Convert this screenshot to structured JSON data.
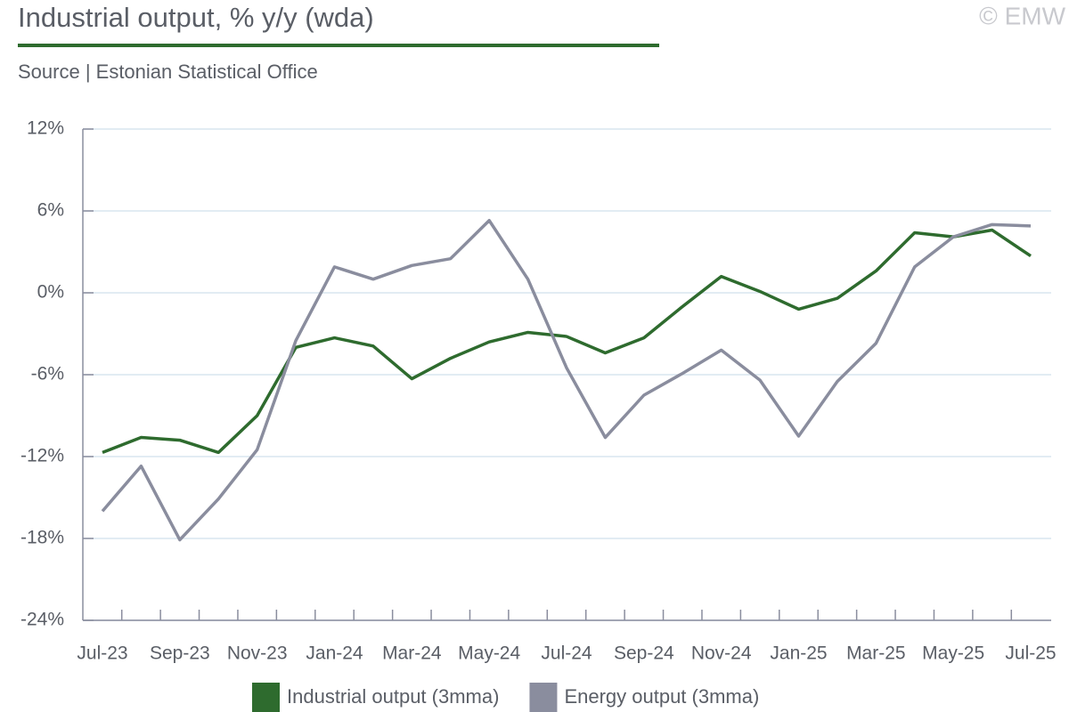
{
  "chart_data": {
    "type": "line",
    "title": "Industrial output, % y/y (wda)",
    "subtitle": "Source | Estonian Statistical Office",
    "copyright": "© EMW",
    "categories": [
      "Jul-23",
      null,
      "Sep-23",
      null,
      "Nov-23",
      null,
      "Jan-24",
      null,
      "Mar-24",
      null,
      "May-24",
      null,
      "Jul-24",
      null,
      "Sep-24",
      null,
      "Nov-24",
      null,
      "Jan-25",
      null,
      "Mar-25",
      null,
      "May-25",
      null,
      "Jul-25"
    ],
    "series": [
      {
        "name": "Industrial output (3mma)",
        "color": "#2e6b2e",
        "values": [
          -11.7,
          -10.6,
          -10.8,
          -11.7,
          -9.0,
          -4.0,
          -3.3,
          -3.9,
          -6.3,
          -4.8,
          -3.6,
          -2.9,
          -3.2,
          -4.4,
          -3.3,
          -1.0,
          1.2,
          0.1,
          -1.2,
          -0.4,
          1.6,
          4.4,
          4.1,
          4.6,
          2.7
        ]
      },
      {
        "name": "Energy output (3mma)",
        "color": "#8a8d9e",
        "values": [
          -16.0,
          -12.7,
          -18.1,
          -15.1,
          -11.5,
          -3.5,
          1.9,
          1.0,
          2.0,
          2.5,
          5.3,
          1.0,
          -5.5,
          -10.6,
          -7.5,
          -5.9,
          -4.2,
          -6.4,
          -10.5,
          -6.5,
          -3.7,
          1.9,
          4.1,
          5.0,
          4.9
        ]
      }
    ],
    "ylim": [
      -24,
      12
    ],
    "yticks": [
      {
        "value": -24,
        "label": "-24%"
      },
      {
        "value": -18,
        "label": "-18%"
      },
      {
        "value": -12,
        "label": "-12%"
      },
      {
        "value": -6,
        "label": "-6%"
      },
      {
        "value": 0,
        "label": "0%"
      },
      {
        "value": 6,
        "label": "6%"
      },
      {
        "value": 12,
        "label": "12%"
      }
    ],
    "grid": true,
    "legend": "bottom"
  }
}
